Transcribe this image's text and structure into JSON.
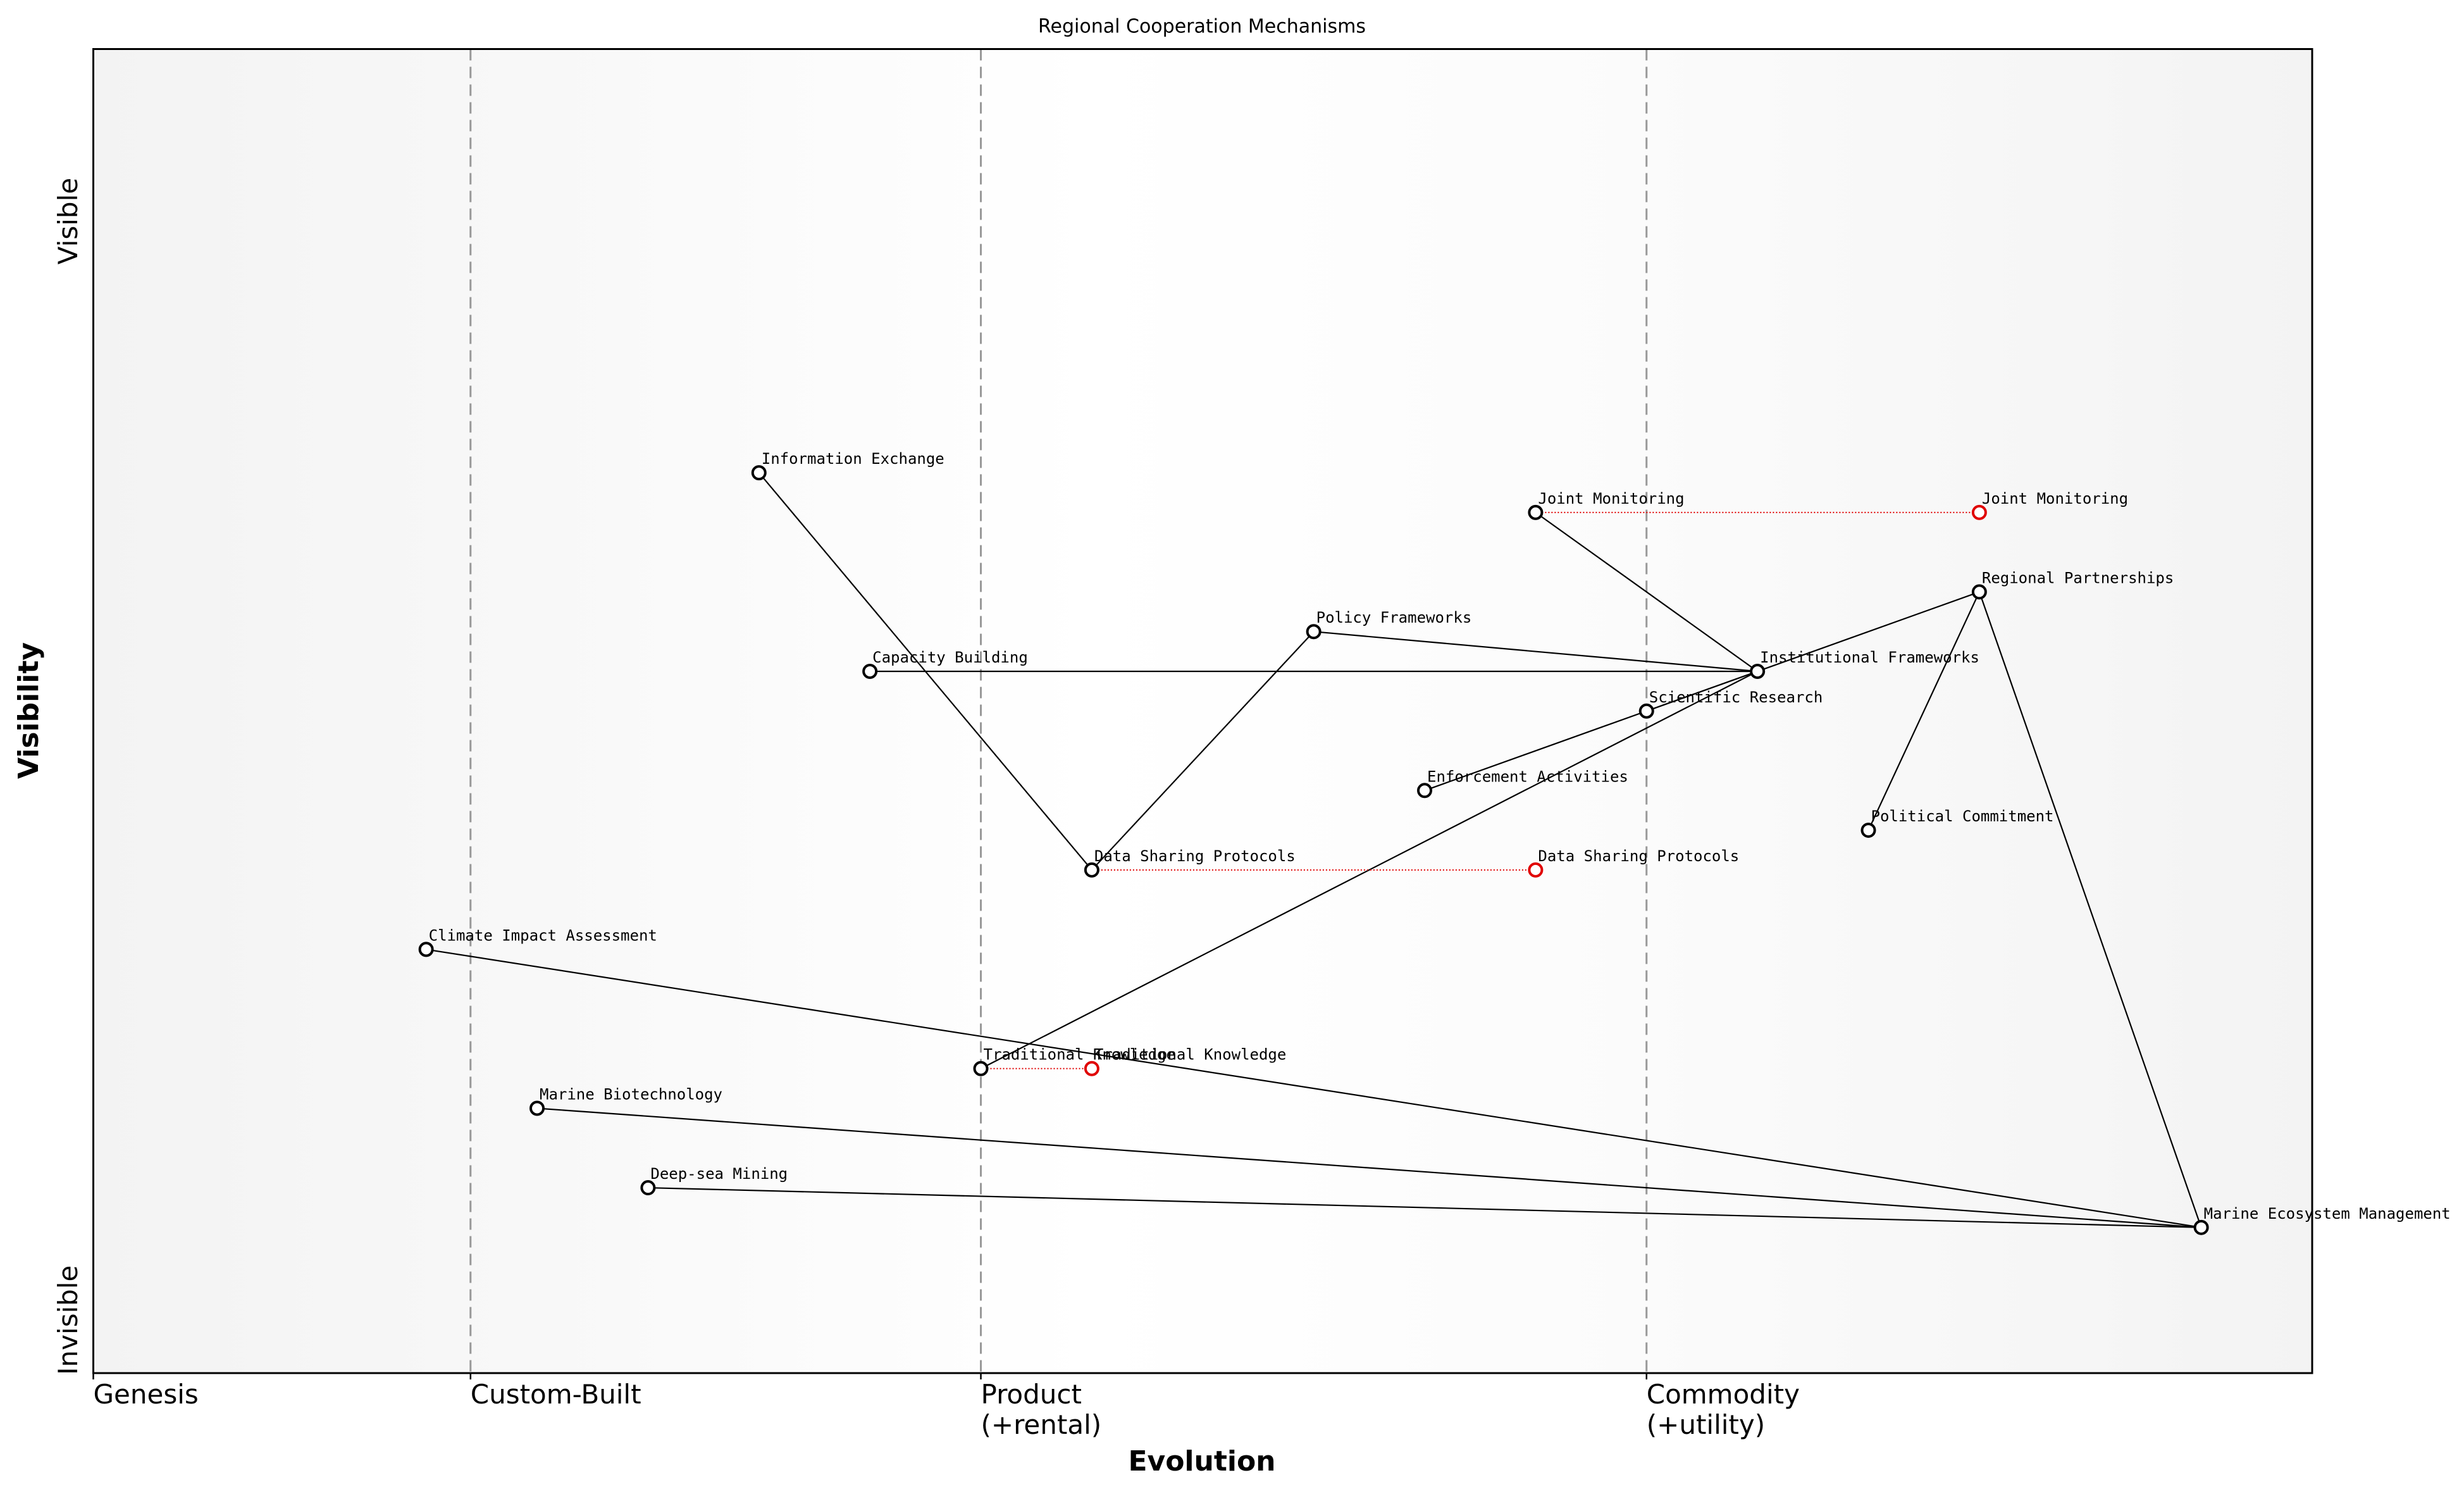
{
  "chart_data": {
    "type": "wardley",
    "title": "Regional Cooperation Mechanisms",
    "x_label": "Evolution",
    "y_label": "Visibility",
    "xlim": [
      0,
      1
    ],
    "ylim": [
      0,
      1
    ],
    "xticks": [
      {
        "value": 0,
        "label": "Genesis"
      },
      {
        "value": 0.17,
        "label": "Custom-Built"
      },
      {
        "value": 0.4,
        "label": "Product\n(+rental)"
      },
      {
        "value": 0.7,
        "label": "Commodity\n(+utility)"
      }
    ],
    "yticks": [
      {
        "value": 0.04,
        "label": "Invisible"
      },
      {
        "value": 0.87,
        "label": "Visible"
      }
    ],
    "components": [
      {
        "name": "Information Exchange",
        "evolution": 0.3,
        "visibility": 0.68
      },
      {
        "name": "Joint Monitoring",
        "evolution": 0.65,
        "visibility": 0.65,
        "evolve_to": 0.85
      },
      {
        "name": "Policy Frameworks",
        "evolution": 0.55,
        "visibility": 0.56
      },
      {
        "name": "Regional Partnerships",
        "evolution": 0.85,
        "visibility": 0.59
      },
      {
        "name": "Capacity Building",
        "evolution": 0.35,
        "visibility": 0.53
      },
      {
        "name": "Institutional Frameworks",
        "evolution": 0.75,
        "visibility": 0.53
      },
      {
        "name": "Scientific Research",
        "evolution": 0.7,
        "visibility": 0.5
      },
      {
        "name": "Enforcement Activities",
        "evolution": 0.6,
        "visibility": 0.44
      },
      {
        "name": "Political Commitment",
        "evolution": 0.8,
        "visibility": 0.41
      },
      {
        "name": "Data Sharing Protocols",
        "evolution": 0.45,
        "visibility": 0.38,
        "evolve_to": 0.65
      },
      {
        "name": "Climate Impact Assessment",
        "evolution": 0.15,
        "visibility": 0.32
      },
      {
        "name": "Traditional Knowledge",
        "evolution": 0.4,
        "visibility": 0.23,
        "evolve_to": 0.45
      },
      {
        "name": "Marine Biotechnology",
        "evolution": 0.2,
        "visibility": 0.2
      },
      {
        "name": "Deep-sea Mining",
        "evolution": 0.25,
        "visibility": 0.14
      },
      {
        "name": "Marine Ecosystem Management",
        "evolution": 0.95,
        "visibility": 0.11
      }
    ],
    "links": [
      [
        0,
        9
      ],
      [
        9,
        2
      ],
      [
        2,
        5
      ],
      [
        1,
        5
      ],
      [
        4,
        5
      ],
      [
        5,
        3
      ],
      [
        7,
        5
      ],
      [
        11,
        5
      ],
      [
        6,
        5
      ],
      [
        3,
        8
      ],
      [
        3,
        14
      ],
      [
        10,
        14
      ],
      [
        12,
        14
      ],
      [
        13,
        14
      ]
    ],
    "line_color": "#000000",
    "evolve_color": "#e00000",
    "stage_line_color": "#999999"
  }
}
